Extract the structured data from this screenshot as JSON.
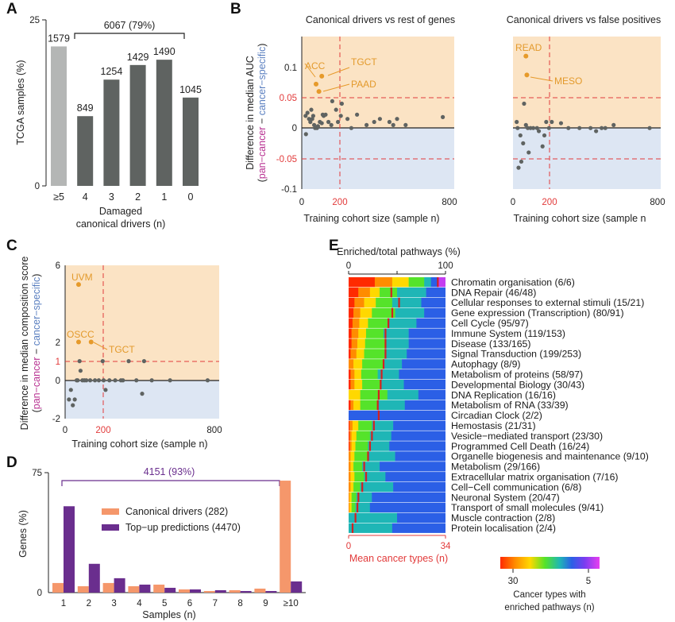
{
  "colors": {
    "gray_dark": "#5f6361",
    "gray_light": "#b4b6b5",
    "orange_bg": "#fbe3c4",
    "blue_bg": "#dde6f3",
    "orange_point": "#e69a2a",
    "red": "#e23b3b",
    "purple": "#6a2e8e",
    "salmon": "#f5976b",
    "pink": "#b83292"
  },
  "panels": [
    "A",
    "B",
    "C",
    "D",
    "E"
  ],
  "chart_data": [
    {
      "id": "A",
      "type": "bar",
      "categories": [
        "≥5",
        "4",
        "3",
        "2",
        "1",
        "0"
      ],
      "values": [
        21.0,
        10.5,
        16.0,
        18.2,
        19.0,
        13.3
      ],
      "labels": [
        "1579",
        "849",
        "1254",
        "1429",
        "1490",
        "1045"
      ],
      "ylabel": "TCGA samples (%)",
      "xlabel": [
        "Damaged",
        "canonical drivers (n)"
      ],
      "ylim": [
        0,
        25
      ],
      "yticks": [
        "0",
        "25"
      ],
      "bracket_label": "6067 (79%)"
    },
    {
      "id": "B1",
      "type": "scatter",
      "title": "Canonical drivers vs rest of genes",
      "ylabel_top": "Difference in median AUC",
      "ylabel_legend": [
        "(",
        "pan−cancer",
        " − ",
        "cancer−specific",
        ")"
      ],
      "xlabel": "Training cohort size (sample n)",
      "xlim": [
        0,
        800
      ],
      "ylim": [
        -0.1,
        0.15
      ],
      "yticks": [
        "-0.1",
        "-0.05",
        "0",
        "0.05",
        "0.1"
      ],
      "xticks": [
        "0",
        "200",
        "800"
      ],
      "hline_dashed": [
        0.05,
        -0.05
      ],
      "vline_dashed": 200,
      "points": [
        [
          20,
          0.02
        ],
        [
          22,
          -0.01
        ],
        [
          30,
          0.025
        ],
        [
          38,
          0.015
        ],
        [
          45,
          0.01
        ],
        [
          50,
          0.03
        ],
        [
          55,
          0.015
        ],
        [
          60,
          0.02
        ],
        [
          65,
          0.005
        ],
        [
          70,
          0.0
        ],
        [
          80,
          0.0
        ],
        [
          85,
          0.003
        ],
        [
          95,
          0.01
        ],
        [
          105,
          0.008
        ],
        [
          110,
          0.022
        ],
        [
          115,
          0.02
        ],
        [
          125,
          0.022
        ],
        [
          140,
          0.01
        ],
        [
          155,
          0.005
        ],
        [
          160,
          0.044
        ],
        [
          180,
          0.03
        ],
        [
          190,
          0.01
        ],
        [
          205,
          0.02
        ],
        [
          210,
          0.04
        ],
        [
          240,
          0.015
        ],
        [
          260,
          0.0
        ],
        [
          290,
          0.022
        ],
        [
          340,
          0.005
        ],
        [
          380,
          0.01
        ],
        [
          410,
          0.015
        ],
        [
          460,
          0.01
        ],
        [
          480,
          0.005
        ],
        [
          500,
          0.015
        ],
        [
          545,
          0.005
        ],
        [
          740,
          0.018
        ]
      ],
      "highlights": [
        {
          "x": 75,
          "y": 0.072,
          "label": "ACC"
        },
        {
          "x": 105,
          "y": 0.085,
          "label": "TGCT"
        },
        {
          "x": 90,
          "y": 0.06,
          "label": "PAAD"
        }
      ]
    },
    {
      "id": "B2",
      "type": "scatter",
      "title": "Canonical drivers vs false positives",
      "xlabel": "Training cohort size (sample n",
      "xlim": [
        0,
        800
      ],
      "ylim": [
        -0.1,
        0.15
      ],
      "xticks": [
        "0",
        "200",
        "800"
      ],
      "hline_dashed": [
        0.05,
        -0.05
      ],
      "vline_dashed": 200,
      "points": [
        [
          20,
          0.01
        ],
        [
          25,
          0.0
        ],
        [
          30,
          -0.065
        ],
        [
          40,
          -0.012
        ],
        [
          45,
          -0.055
        ],
        [
          55,
          -0.025
        ],
        [
          60,
          0.04
        ],
        [
          70,
          0.005
        ],
        [
          80,
          0.0
        ],
        [
          85,
          -0.04
        ],
        [
          95,
          0.0
        ],
        [
          110,
          0.0
        ],
        [
          130,
          0.0
        ],
        [
          140,
          -0.005
        ],
        [
          160,
          -0.03
        ],
        [
          170,
          -0.012
        ],
        [
          180,
          0.01
        ],
        [
          195,
          0.0
        ],
        [
          210,
          0.01
        ],
        [
          260,
          0.008
        ],
        [
          300,
          0.0
        ],
        [
          360,
          0.0
        ],
        [
          420,
          0.0
        ],
        [
          450,
          -0.005
        ],
        [
          480,
          0.0
        ],
        [
          500,
          0.0
        ],
        [
          545,
          0.005
        ],
        [
          740,
          0.0
        ]
      ],
      "highlights": [
        {
          "x": 70,
          "y": 0.118,
          "label": "READ"
        },
        {
          "x": 75,
          "y": 0.087,
          "label": "MESO"
        }
      ]
    },
    {
      "id": "C",
      "type": "scatter",
      "ylabel_top": "Difference in median composition score",
      "ylabel_legend": [
        "(",
        "pan−cancer",
        " − ",
        "cancer−specific",
        ")"
      ],
      "xlabel": "Training cohort size (sample n)",
      "xlim": [
        0,
        800
      ],
      "ylim": [
        -2,
        6
      ],
      "yticks": [
        "-2",
        "0",
        "1",
        "2",
        "6"
      ],
      "xticks": [
        "0",
        "200",
        "800"
      ],
      "hline_dashed": [
        1
      ],
      "vline_dashed": 200,
      "points": [
        [
          20,
          -1.0
        ],
        [
          30,
          -0.5
        ],
        [
          40,
          -1.3
        ],
        [
          50,
          -1.0
        ],
        [
          60,
          0.0
        ],
        [
          65,
          0.0
        ],
        [
          75,
          1.0
        ],
        [
          80,
          0.5
        ],
        [
          90,
          0.0
        ],
        [
          100,
          0.0
        ],
        [
          110,
          0.0
        ],
        [
          130,
          0.0
        ],
        [
          155,
          0.0
        ],
        [
          175,
          0.0
        ],
        [
          195,
          1.0
        ],
        [
          200,
          0.0
        ],
        [
          210,
          -0.5
        ],
        [
          230,
          0.0
        ],
        [
          260,
          0.0
        ],
        [
          290,
          0.0
        ],
        [
          300,
          0.0
        ],
        [
          330,
          1.0
        ],
        [
          370,
          0.0
        ],
        [
          400,
          -0.7
        ],
        [
          410,
          1.0
        ],
        [
          450,
          0.0
        ],
        [
          545,
          0.0
        ],
        [
          740,
          0.0
        ]
      ],
      "highlights": [
        {
          "x": 70,
          "y": 5.0,
          "label": "UVM"
        },
        {
          "x": 70,
          "y": 2.0,
          "label": "OSCC"
        },
        {
          "x": 135,
          "y": 2.0,
          "label": "TGCT"
        }
      ]
    },
    {
      "id": "D",
      "type": "bar",
      "categories": [
        "1",
        "2",
        "3",
        "4",
        "5",
        "6",
        "7",
        "8",
        "9",
        "≥10"
      ],
      "series": [
        {
          "name": "Canonical drivers (282)",
          "values": [
            6,
            4,
            6,
            4,
            5,
            2,
            1,
            1.5,
            2.5,
            70
          ]
        },
        {
          "name": "Top−up predictions (4470)",
          "values": [
            54,
            18,
            9,
            5,
            3,
            2,
            1.5,
            1,
            1,
            7
          ]
        }
      ],
      "ylabel": "Genes (%)",
      "xlabel": "Samples (n)",
      "ylim": [
        0,
        75
      ],
      "yticks": [
        "0",
        "75"
      ],
      "bracket_label": "4151 (93%)"
    },
    {
      "id": "E",
      "type": "heatmap",
      "top_axis_label": "Enriched/total pathways (%)",
      "top_ticks": [
        "0",
        "100"
      ],
      "bottom_ticks": [
        "0",
        "34"
      ],
      "bottom_axis_label": "Mean cancer types (n)",
      "colorbar_ticks": [
        "30",
        "5"
      ],
      "colorbar_label": [
        "Cancer types with",
        "enriched pathways (n)"
      ],
      "rows": [
        {
          "label": "Chromatin organisation (6/6)",
          "mean": 0.92,
          "stops": [
            0.27,
            0.45,
            0.62,
            0.78,
            0.85,
            0.92
          ]
        },
        {
          "label": "DNA Repair (46/48)",
          "mean": 0.44,
          "stops": [
            0.1,
            0.22,
            0.32,
            0.5,
            0.8,
            1.0
          ]
        },
        {
          "label": "Cellular responses to external stimuli (15/21)",
          "mean": 0.52,
          "stops": [
            0.06,
            0.16,
            0.28,
            0.45,
            0.75,
            1.0
          ]
        },
        {
          "label": "Gene expression (Transcription) (80/91)",
          "mean": 0.45,
          "stops": [
            0.05,
            0.12,
            0.24,
            0.48,
            0.78,
            1.0
          ]
        },
        {
          "label": "Cell Cycle (95/97)",
          "mean": 0.41,
          "stops": [
            0.04,
            0.11,
            0.2,
            0.4,
            0.7,
            1.0
          ]
        },
        {
          "label": "Immune System (119/153)",
          "mean": 0.38,
          "stops": [
            0.03,
            0.1,
            0.18,
            0.36,
            0.62,
            1.0
          ]
        },
        {
          "label": "Disease (133/165)",
          "mean": 0.38,
          "stops": [
            0.03,
            0.09,
            0.17,
            0.38,
            0.62,
            1.0
          ]
        },
        {
          "label": "Signal Transduction (199/253)",
          "mean": 0.38,
          "stops": [
            0.02,
            0.08,
            0.16,
            0.37,
            0.6,
            1.0
          ]
        },
        {
          "label": "Autophagy (8/9)",
          "mean": 0.36,
          "stops": [
            0.0,
            0.05,
            0.14,
            0.36,
            0.55,
            1.0
          ]
        },
        {
          "label": "Metabolism of proteins (58/97)",
          "mean": 0.34,
          "stops": [
            0.02,
            0.06,
            0.13,
            0.3,
            0.52,
            1.0
          ]
        },
        {
          "label": "Developmental Biology (30/43)",
          "mean": 0.33,
          "stops": [
            0.02,
            0.06,
            0.14,
            0.33,
            0.57,
            1.0
          ]
        },
        {
          "label": "DNA Replication (16/16)",
          "mean": 0.31,
          "stops": [
            0.0,
            0.0,
            0.12,
            0.4,
            0.72,
            1.0
          ]
        },
        {
          "label": "Metabolism of RNA (33/39)",
          "mean": 0.3,
          "stops": [
            0.02,
            0.05,
            0.12,
            0.3,
            0.58,
            1.0
          ]
        },
        {
          "label": "Circadian Clock (2/2)",
          "mean": 0.31,
          "stops": [
            0.0,
            0.0,
            0.0,
            0.0,
            0.0,
            1.0
          ]
        },
        {
          "label": "Hemostasis (21/31)",
          "mean": 0.26,
          "stops": [
            0.01,
            0.04,
            0.1,
            0.24,
            0.46,
            1.0
          ]
        },
        {
          "label": "Vesicle−mediated transport (23/30)",
          "mean": 0.24,
          "stops": [
            0.01,
            0.03,
            0.08,
            0.22,
            0.44,
            1.0
          ]
        },
        {
          "label": "Programmed Cell Death (16/24)",
          "mean": 0.22,
          "stops": [
            0.01,
            0.03,
            0.07,
            0.2,
            0.42,
            1.0
          ]
        },
        {
          "label": "Organelle biogenesis and maintenance (9/10)",
          "mean": 0.2,
          "stops": [
            0.0,
            0.02,
            0.06,
            0.2,
            0.48,
            1.0
          ]
        },
        {
          "label": "Metabolism (29/166)",
          "mean": 0.16,
          "stops": [
            0.0,
            0.02,
            0.05,
            0.14,
            0.32,
            1.0
          ]
        },
        {
          "label": "Extracellular matrix organisation (7/16)",
          "mean": 0.18,
          "stops": [
            0.0,
            0.02,
            0.06,
            0.16,
            0.38,
            1.0
          ]
        },
        {
          "label": "Cell−Cell communication (6/8)",
          "mean": 0.14,
          "stops": [
            0.0,
            0.02,
            0.05,
            0.12,
            0.46,
            1.0
          ]
        },
        {
          "label": "Neuronal System (20/47)",
          "mean": 0.1,
          "stops": [
            0.0,
            0.01,
            0.03,
            0.08,
            0.24,
            1.0
          ]
        },
        {
          "label": "Transport of small molecules (9/41)",
          "mean": 0.09,
          "stops": [
            0.0,
            0.01,
            0.03,
            0.07,
            0.22,
            1.0
          ]
        },
        {
          "label": "Muscle contraction (2/8)",
          "mean": 0.07,
          "stops": [
            0.0,
            0.0,
            0.0,
            0.0,
            0.5,
            1.0
          ]
        },
        {
          "label": "Protein localisation (2/4)",
          "mean": 0.04,
          "stops": [
            0.0,
            0.0,
            0.0,
            0.0,
            0.45,
            1.0
          ]
        }
      ]
    }
  ]
}
